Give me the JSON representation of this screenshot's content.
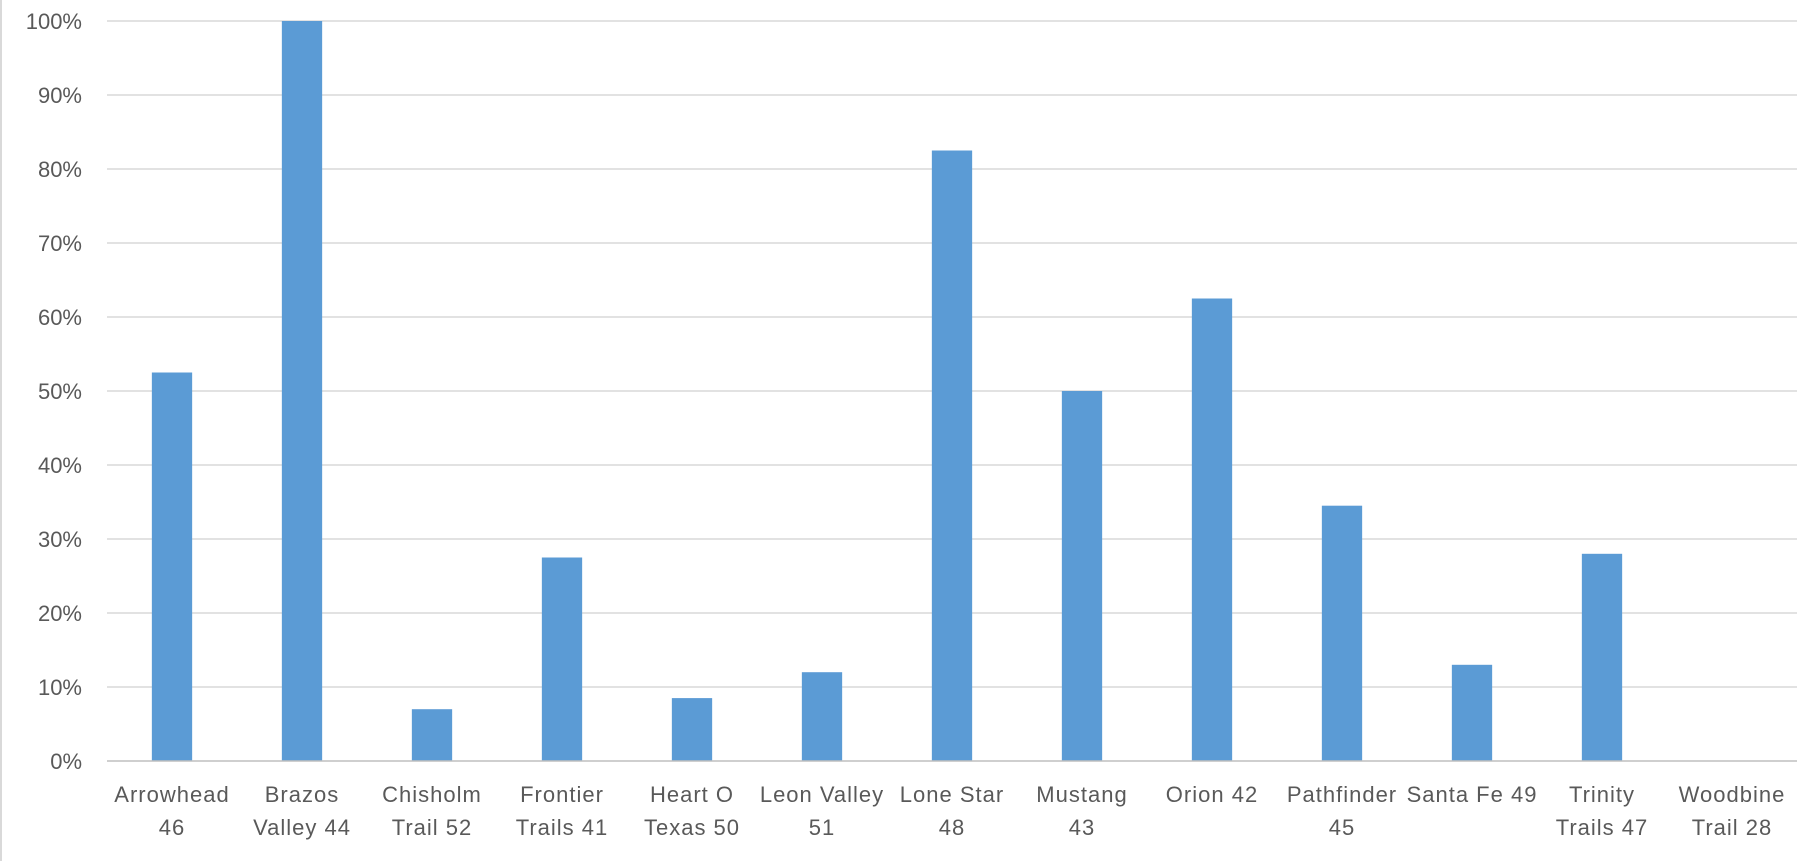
{
  "chart_data": {
    "type": "bar",
    "title": "",
    "xlabel": "",
    "ylabel": "",
    "ylim": [
      0,
      1
    ],
    "yticks": [
      {
        "value": 0,
        "label": "0%"
      },
      {
        "value": 0.1,
        "label": "10%"
      },
      {
        "value": 0.2,
        "label": "20%"
      },
      {
        "value": 0.3,
        "label": "30%"
      },
      {
        "value": 0.4,
        "label": "40%"
      },
      {
        "value": 0.5,
        "label": "50%"
      },
      {
        "value": 0.6,
        "label": "60%"
      },
      {
        "value": 0.7,
        "label": "70%"
      },
      {
        "value": 0.8,
        "label": "80%"
      },
      {
        "value": 0.9,
        "label": "90%"
      },
      {
        "value": 1.0,
        "label": "100%"
      }
    ],
    "categories": [
      [
        "Arrowhead",
        "46"
      ],
      [
        "Brazos",
        "Valley 44"
      ],
      [
        "Chisholm",
        "Trail 52"
      ],
      [
        "Frontier",
        "Trails 41"
      ],
      [
        "Heart O",
        "Texas 50"
      ],
      [
        "Leon Valley",
        "51"
      ],
      [
        "Lone Star",
        "48"
      ],
      [
        "Mustang",
        "43"
      ],
      [
        "Orion 42",
        ""
      ],
      [
        "Pathfinder",
        "45"
      ],
      [
        "Santa Fe 49",
        ""
      ],
      [
        "Trinity",
        "Trails 47"
      ],
      [
        "Woodbine",
        "Trail 28"
      ]
    ],
    "values": [
      0.525,
      1.0,
      0.07,
      0.275,
      0.085,
      0.12,
      0.825,
      0.5,
      0.625,
      0.345,
      0.13,
      0.28,
      0.0
    ],
    "grid": true,
    "legend": "none",
    "bar_color": "#5b9bd5",
    "grid_color": "#d9d9d9",
    "text_color": "#595959"
  }
}
